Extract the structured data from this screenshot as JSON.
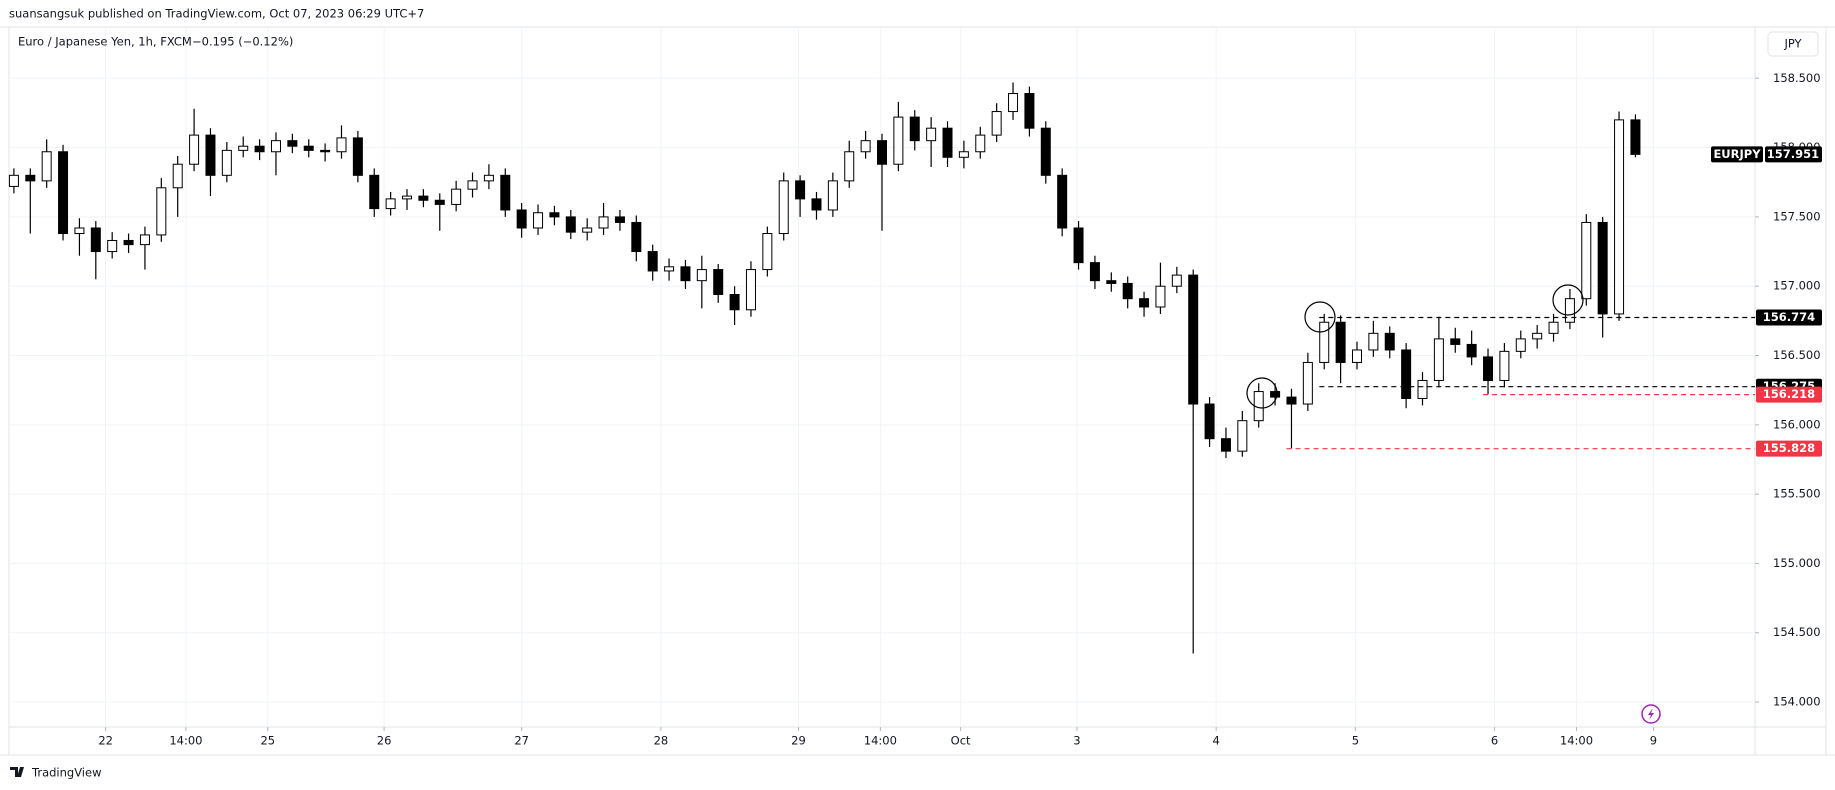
{
  "header": {
    "publisher": "suansangsuk published on TradingView.com, Oct 07, 2023 06:29 UTC+7"
  },
  "chart_data": {
    "type": "candlestick",
    "title": "Euro / Japanese Yen, 1h, FXCM",
    "change": "−0.195 (−0.12%)",
    "currency": "JPY",
    "symbol": "EURJPY",
    "open": [
      157.72,
      157.8,
      157.76,
      157.97,
      157.38,
      157.42,
      157.25,
      157.33,
      157.3,
      157.37,
      157.71,
      157.88,
      158.09,
      157.8,
      157.98,
      158.01,
      157.97,
      158.05,
      158.01,
      157.98,
      157.97,
      158.07,
      157.8,
      157.56,
      157.63,
      157.65,
      157.62,
      157.59,
      157.7,
      157.76,
      157.8,
      157.55,
      157.42,
      157.53,
      157.5,
      157.39,
      157.42,
      157.5,
      157.46,
      157.25,
      157.11,
      157.14,
      157.04,
      157.12,
      156.94,
      156.83,
      157.12,
      157.38,
      157.76,
      157.63,
      157.55,
      157.76,
      157.97,
      158.05,
      157.88,
      158.22,
      158.05,
      158.14,
      157.93,
      157.97,
      158.09,
      158.26,
      158.39,
      158.14,
      157.8,
      157.42,
      157.17,
      157.04,
      157.02,
      156.91,
      156.85,
      157.0,
      157.08,
      156.15,
      155.9,
      155.81,
      156.03,
      156.24,
      156.2,
      156.15,
      156.45,
      156.74,
      156.45,
      156.54,
      156.66,
      156.54,
      156.19,
      156.32,
      156.62,
      156.58,
      156.49,
      156.32,
      156.53,
      156.62,
      156.66,
      156.74,
      156.91,
      157.46,
      156.8,
      158.2
    ],
    "high": [
      157.85,
      157.85,
      158.06,
      158.02,
      157.49,
      157.47,
      157.39,
      157.38,
      157.43,
      157.78,
      157.94,
      158.28,
      158.14,
      158.04,
      158.08,
      158.06,
      158.11,
      158.1,
      158.06,
      158.03,
      158.16,
      158.12,
      157.85,
      157.68,
      157.7,
      157.7,
      157.67,
      157.76,
      157.82,
      157.88,
      157.85,
      157.6,
      157.59,
      157.58,
      157.55,
      157.49,
      157.6,
      157.55,
      157.51,
      157.3,
      157.2,
      157.19,
      157.22,
      157.16,
      157.0,
      157.18,
      157.43,
      157.82,
      157.8,
      157.68,
      157.82,
      158.05,
      158.12,
      158.1,
      158.33,
      158.27,
      158.22,
      158.19,
      158.05,
      158.15,
      158.32,
      158.47,
      158.44,
      158.19,
      157.85,
      157.47,
      157.22,
      157.1,
      157.07,
      156.96,
      157.17,
      157.14,
      157.12,
      156.2,
      155.98,
      156.1,
      156.3,
      156.3,
      156.26,
      156.52,
      156.8,
      156.79,
      156.6,
      156.75,
      156.71,
      156.59,
      156.38,
      156.78,
      156.7,
      156.68,
      156.55,
      156.59,
      156.68,
      156.72,
      156.8,
      156.98,
      157.52,
      157.5,
      158.26,
      158.24
    ],
    "low": [
      157.67,
      157.38,
      157.71,
      157.33,
      157.22,
      157.05,
      157.2,
      157.24,
      157.12,
      157.32,
      157.5,
      157.83,
      157.65,
      157.75,
      157.93,
      157.91,
      157.8,
      157.96,
      157.93,
      157.9,
      157.92,
      157.75,
      157.5,
      157.51,
      157.55,
      157.57,
      157.4,
      157.54,
      157.64,
      157.7,
      157.5,
      157.35,
      157.37,
      157.44,
      157.34,
      157.33,
      157.37,
      157.4,
      157.18,
      157.04,
      157.04,
      156.98,
      156.84,
      156.88,
      156.72,
      156.78,
      157.07,
      157.33,
      157.5,
      157.48,
      157.5,
      157.71,
      157.92,
      157.4,
      157.83,
      157.98,
      157.86,
      157.86,
      157.85,
      157.92,
      158.04,
      158.2,
      158.08,
      157.74,
      157.36,
      157.12,
      156.98,
      156.96,
      156.84,
      156.78,
      156.8,
      156.95,
      154.35,
      155.84,
      155.76,
      155.77,
      155.98,
      156.14,
      155.83,
      156.1,
      156.4,
      156.3,
      156.4,
      156.49,
      156.48,
      156.12,
      156.14,
      156.27,
      156.52,
      156.43,
      156.22,
      156.27,
      156.48,
      156.55,
      156.6,
      156.69,
      156.86,
      156.63,
      156.75,
      157.93
    ],
    "close": [
      157.8,
      157.76,
      157.97,
      157.38,
      157.42,
      157.25,
      157.33,
      157.3,
      157.37,
      157.71,
      157.88,
      158.09,
      157.8,
      157.98,
      158.01,
      157.97,
      158.05,
      158.01,
      157.98,
      157.97,
      158.07,
      157.8,
      157.56,
      157.63,
      157.65,
      157.62,
      157.59,
      157.7,
      157.76,
      157.8,
      157.55,
      157.42,
      157.53,
      157.5,
      157.39,
      157.42,
      157.5,
      157.46,
      157.25,
      157.11,
      157.14,
      157.04,
      157.12,
      156.94,
      156.83,
      157.12,
      157.38,
      157.76,
      157.63,
      157.55,
      157.76,
      157.97,
      158.05,
      157.88,
      158.22,
      158.05,
      158.14,
      157.93,
      157.97,
      158.09,
      158.26,
      158.39,
      158.14,
      157.8,
      157.42,
      157.17,
      157.04,
      157.02,
      156.91,
      156.85,
      157.0,
      157.08,
      156.15,
      155.9,
      155.81,
      156.03,
      156.24,
      156.2,
      156.15,
      156.45,
      156.74,
      156.45,
      156.54,
      156.66,
      156.54,
      156.19,
      156.32,
      156.62,
      156.58,
      156.49,
      156.32,
      156.53,
      156.62,
      156.66,
      156.74,
      156.91,
      157.46,
      156.8,
      158.2,
      157.951
    ],
    "xlim": [
      -0.3,
      106.3
    ],
    "xticks": [
      {
        "value": 5.6,
        "label": "22"
      },
      {
        "value": 10.5,
        "label": "14:00"
      },
      {
        "value": 15.5,
        "label": "25"
      },
      {
        "value": 22.6,
        "label": "26"
      },
      {
        "value": 31,
        "label": "27"
      },
      {
        "value": 39.5,
        "label": "28"
      },
      {
        "value": 47.9,
        "label": "29"
      },
      {
        "value": 52.9,
        "label": "14:00"
      },
      {
        "value": 57.8,
        "label": "Oct"
      },
      {
        "value": 64.9,
        "label": "3"
      },
      {
        "value": 73.4,
        "label": "4"
      },
      {
        "value": 81.9,
        "label": "5"
      },
      {
        "value": 90.4,
        "label": "6"
      },
      {
        "value": 95.4,
        "label": "14:00"
      },
      {
        "value": 100.1,
        "label": "9"
      }
    ],
    "ylim": [
      153.82,
      158.87
    ],
    "yticks": [
      {
        "value": 154,
        "label": "154.000"
      },
      {
        "value": 154.5,
        "label": "154.500"
      },
      {
        "value": 155,
        "label": "155.000"
      },
      {
        "value": 155.5,
        "label": "155.500"
      },
      {
        "value": 156,
        "label": "156.000"
      },
      {
        "value": 156.5,
        "label": "156.500"
      },
      {
        "value": 157,
        "label": "157.000"
      },
      {
        "value": 157.5,
        "label": "157.500"
      },
      {
        "value": 158,
        "label": "158.000"
      },
      {
        "value": 158.5,
        "label": "158.500"
      }
    ],
    "grid": true,
    "up_color": "#ffffff",
    "down_color": "#000000",
    "levels": [
      {
        "value": 156.774,
        "color": "#000000"
      },
      {
        "value": 156.275,
        "color": "#000000"
      },
      {
        "value": 156.218,
        "color": "#f23645"
      },
      {
        "value": 155.828,
        "color": "#f23645"
      }
    ]
  },
  "footer": {
    "brand": "TradingView"
  }
}
